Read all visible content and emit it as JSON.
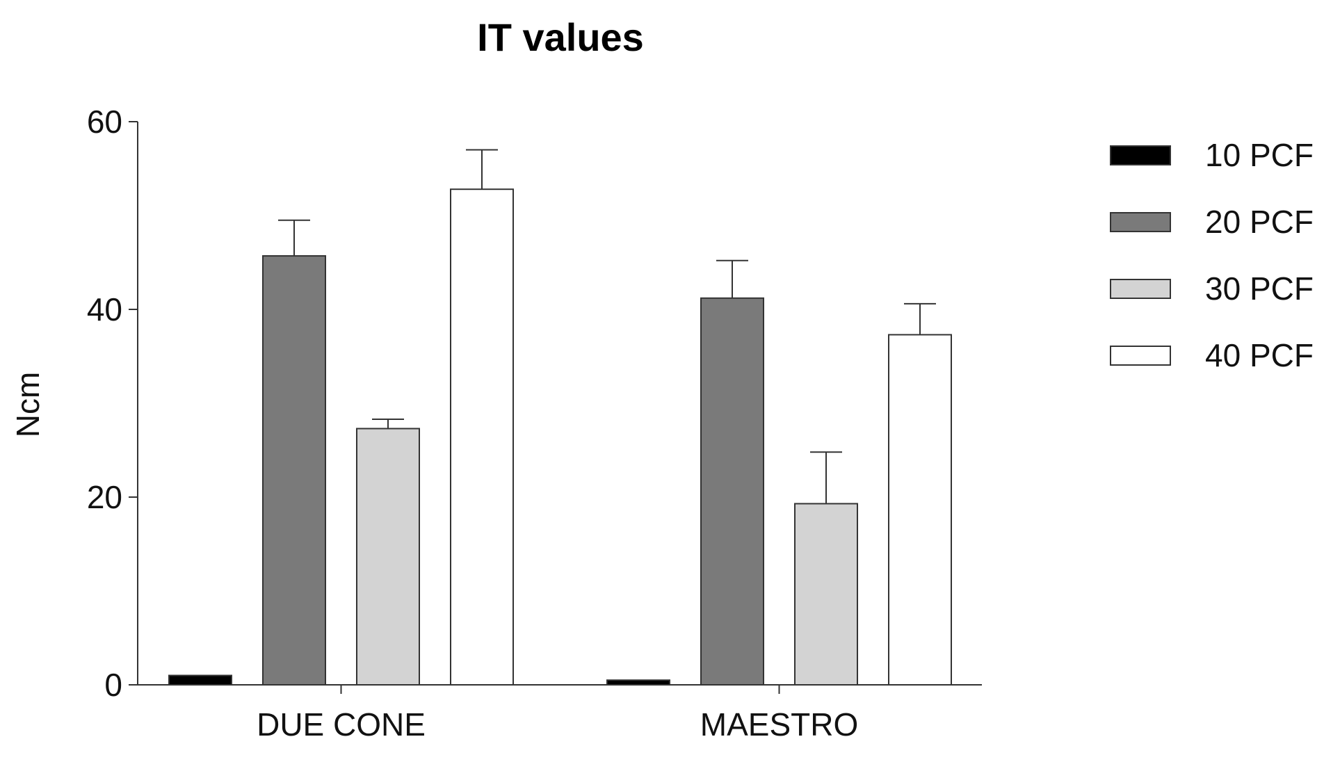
{
  "chart_data": {
    "type": "bar",
    "title": "IT values",
    "xlabel": "",
    "ylabel": "Ncm",
    "ylim": [
      0,
      60
    ],
    "yticks": [
      0,
      20,
      40,
      60
    ],
    "grid": false,
    "legend_position": "right",
    "categories": [
      "DUE CONE",
      "MAESTRO"
    ],
    "series": [
      {
        "name": "10 PCF",
        "color": "#000000",
        "values": [
          1.0,
          0.5
        ],
        "errors": [
          0,
          0
        ]
      },
      {
        "name": "20 PCF",
        "color": "#7a7a7a",
        "values": [
          45.7,
          41.2
        ],
        "errors": [
          3.8,
          4.0
        ]
      },
      {
        "name": "30 PCF",
        "color": "#d3d3d3",
        "values": [
          27.3,
          19.3
        ],
        "errors": [
          1.0,
          5.5
        ]
      },
      {
        "name": "40 PCF",
        "color": "#ffffff",
        "values": [
          52.8,
          37.3
        ],
        "errors": [
          4.2,
          3.3
        ]
      }
    ]
  }
}
